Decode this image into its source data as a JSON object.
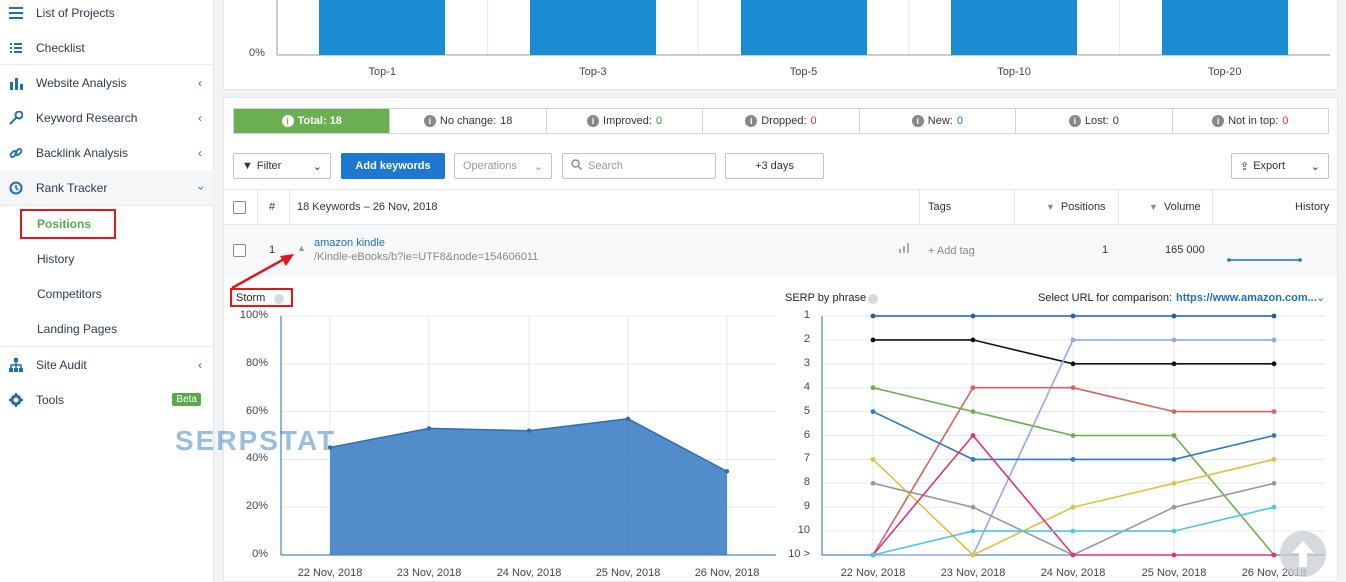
{
  "sidebar": {
    "items": [
      {
        "label": "List of Projects",
        "icon": "list-icon"
      },
      {
        "label": "Checklist",
        "icon": "checklist-icon"
      },
      {
        "label": "Website Analysis",
        "icon": "analytics-icon"
      },
      {
        "label": "Keyword Research",
        "icon": "key-icon"
      },
      {
        "label": "Backlink Analysis",
        "icon": "link-icon"
      },
      {
        "label": "Rank Tracker",
        "icon": "history-icon"
      },
      {
        "label": "Site Audit",
        "icon": "sitemap-icon"
      },
      {
        "label": "Tools",
        "icon": "gear-icon",
        "badge": "Beta"
      }
    ],
    "rank_tracker_sub": [
      "Positions",
      "History",
      "Competitors",
      "Landing Pages"
    ]
  },
  "top_chart": {
    "y_ticks": [
      "0%"
    ],
    "categories": [
      "Top-1",
      "Top-3",
      "Top-5",
      "Top-10",
      "Top-20"
    ]
  },
  "stats": {
    "total": "Total: 18",
    "no_change_label": "No change:",
    "no_change": "18",
    "improved_label": "Improved:",
    "improved": "0",
    "dropped_label": "Dropped:",
    "dropped": "0",
    "new_label": "New:",
    "new": "0",
    "lost_label": "Lost:",
    "lost": "0",
    "not_in_top_label": "Not in top:",
    "not_in_top": "0"
  },
  "toolbar": {
    "filter": "Filter",
    "add_keywords": "Add keywords",
    "operations": "Operations",
    "search_placeholder": "Search",
    "days": "+3 days",
    "export": "Export"
  },
  "table": {
    "headers": {
      "num": "#",
      "keywords": "18 Keywords – 26 Nov, 2018",
      "tags": "Tags",
      "positions": "Positions",
      "volume": "Volume",
      "history": "History"
    },
    "row": {
      "num": "1",
      "keyword": "amazon kindle",
      "url": "/Kindle-eBooks/b?ie=UTF8&node=154606011",
      "add_tag": "+ Add tag",
      "position": "1",
      "volume": "165 000"
    }
  },
  "storm": {
    "title": "Storm",
    "watermark": "SERPSTAT",
    "y_ticks": [
      "100%",
      "80%",
      "60%",
      "40%",
      "20%",
      "0%"
    ],
    "x_ticks": [
      "22 Nov, 2018",
      "23 Nov, 2018",
      "24 Nov, 2018",
      "25 Nov, 2018",
      "26 Nov, 2018"
    ]
  },
  "serp": {
    "title": "SERP by phrase",
    "compare_label": "Select URL for comparison:",
    "compare_value": "https://www.amazon.com...",
    "y_ticks": [
      "1",
      "2",
      "3",
      "4",
      "5",
      "6",
      "7",
      "8",
      "9",
      "10",
      "10 >"
    ],
    "x_ticks": [
      "22 Nov, 2018",
      "23 Nov, 2018",
      "24 Nov, 2018",
      "25 Nov, 2018",
      "26 Nov, 2018"
    ]
  },
  "chart_data": [
    {
      "type": "bar",
      "categories": [
        "Top-1",
        "Top-3",
        "Top-5",
        "Top-10",
        "Top-20"
      ],
      "values": [
        100,
        100,
        100,
        100,
        100
      ],
      "ylabel": "",
      "xlabel": ""
    },
    {
      "type": "area",
      "title": "Storm",
      "x": [
        "22 Nov, 2018",
        "23 Nov, 2018",
        "24 Nov, 2018",
        "25 Nov, 2018",
        "26 Nov, 2018"
      ],
      "values": [
        45,
        53,
        52,
        57,
        35
      ],
      "ylim": [
        0,
        100
      ],
      "color": "#3f80c4"
    },
    {
      "type": "line",
      "title": "SERP by phrase",
      "x": [
        "22 Nov, 2018",
        "23 Nov, 2018",
        "24 Nov, 2018",
        "25 Nov, 2018",
        "26 Nov, 2018"
      ],
      "y_axis": "position (inverted), 11 = beyond 10",
      "series": [
        {
          "color": "#1f5fa8",
          "values": [
            1,
            1,
            1,
            1,
            1
          ]
        },
        {
          "color": "#111111",
          "values": [
            2,
            2,
            3,
            3,
            3
          ]
        },
        {
          "color": "#92a8ee",
          "values": [
            11,
            11,
            2,
            2,
            2
          ]
        },
        {
          "color": "#d9625f",
          "values": [
            11,
            4,
            4,
            5,
            5
          ]
        },
        {
          "color": "#6ab04c",
          "values": [
            4,
            5,
            6,
            6,
            11
          ]
        },
        {
          "color": "#2e7bc4",
          "values": [
            5,
            7,
            7,
            7,
            6
          ]
        },
        {
          "color": "#e0c040",
          "values": [
            7,
            11,
            9,
            8,
            7
          ]
        },
        {
          "color": "#999999",
          "values": [
            8,
            9,
            11,
            9,
            8
          ]
        },
        {
          "color": "#e0337a",
          "values": [
            11,
            6,
            11,
            11,
            11
          ]
        },
        {
          "color": "#4ec6e6",
          "values": [
            11,
            10,
            10,
            10,
            9
          ]
        }
      ]
    }
  ]
}
